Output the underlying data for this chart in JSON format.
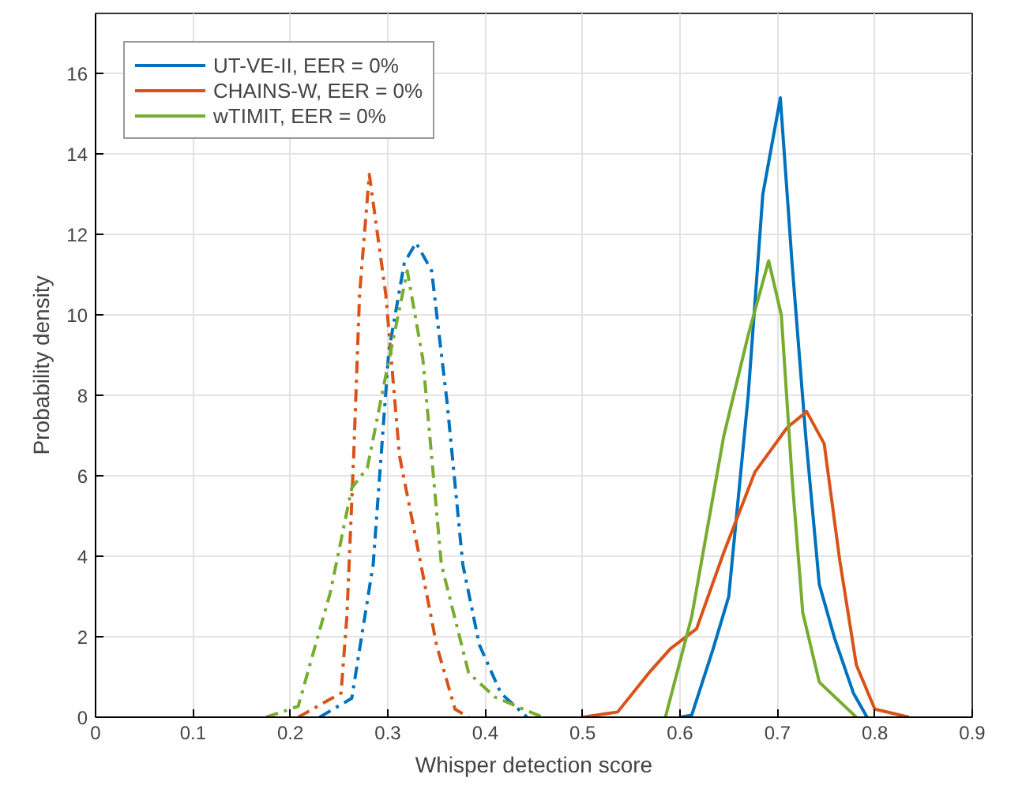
{
  "chart_data": {
    "type": "line",
    "xlabel": "Whisper detection score",
    "ylabel": "Probability density",
    "xlim": [
      0,
      0.9
    ],
    "ylim": [
      0,
      17.5
    ],
    "xticks": [
      0,
      0.1,
      0.2,
      0.3,
      0.4,
      0.5,
      0.6,
      0.7,
      0.8,
      0.9
    ],
    "yticks": [
      0,
      2,
      4,
      6,
      8,
      10,
      12,
      14,
      16
    ],
    "grid": true,
    "legend": "top left",
    "marker": "none",
    "series": [
      {
        "name": "UT-VE-II, EER = 0%",
        "color": "#0072bd",
        "line_style": "solid",
        "x": [
          0.6,
          0.612,
          0.634,
          0.65,
          0.67,
          0.685,
          0.703,
          0.715,
          0.729,
          0.743,
          0.759,
          0.778,
          0.792
        ],
        "values": [
          0,
          0.05,
          1.7,
          3,
          8,
          13,
          15.4,
          11.3,
          7,
          3.3,
          1.94,
          0.6,
          0
        ]
      },
      {
        "name": "CHAINS-W, EER = 0%",
        "color": "#d95319",
        "line_style": "solid",
        "x": [
          0.5,
          0.536,
          0.568,
          0.59,
          0.617,
          0.645,
          0.677,
          0.71,
          0.73,
          0.748,
          0.764,
          0.781,
          0.8,
          0.835
        ],
        "values": [
          0,
          0.13,
          1.1,
          1.7,
          2.2,
          4.1,
          6.1,
          7.2,
          7.6,
          6.8,
          3.9,
          1.3,
          0.2,
          0
        ]
      },
      {
        "name": "wTIMIT, EER = 0%",
        "color": "#77ac30",
        "line_style": "solid",
        "x": [
          0.585,
          0.612,
          0.645,
          0.67,
          0.691,
          0.704,
          0.715,
          0.726,
          0.743,
          0.781
        ],
        "values": [
          0,
          2.5,
          7,
          9.5,
          11.35,
          10,
          5.95,
          2.6,
          0.87,
          0
        ]
      },
      {
        "color": "#0072bd",
        "line_style": "dashdot",
        "x": [
          0.23,
          0.263,
          0.285,
          0.301,
          0.317,
          0.329,
          0.345,
          0.361,
          0.377,
          0.394,
          0.416,
          0.443
        ],
        "values": [
          0,
          0.47,
          3.8,
          9.1,
          11.3,
          11.8,
          11.1,
          7.8,
          3.8,
          1.8,
          0.6,
          0
        ]
      },
      {
        "color": "#d95319",
        "line_style": "dashdot",
        "x": [
          0.208,
          0.252,
          0.258,
          0.265,
          0.271,
          0.281,
          0.298,
          0.312,
          0.334,
          0.35,
          0.369,
          0.383
        ],
        "values": [
          0,
          0.6,
          2.5,
          6.5,
          10.5,
          13.5,
          10.5,
          6.5,
          3.8,
          1.8,
          0.2,
          0
        ]
      },
      {
        "color": "#77ac30",
        "line_style": "dashdot",
        "x": [
          0.175,
          0.208,
          0.241,
          0.263,
          0.279,
          0.298,
          0.32,
          0.336,
          0.355,
          0.383,
          0.41,
          0.459
        ],
        "values": [
          0,
          0.27,
          3.1,
          5.7,
          6.2,
          8.5,
          11.1,
          8.9,
          3.8,
          1.1,
          0.5,
          0
        ]
      }
    ]
  }
}
